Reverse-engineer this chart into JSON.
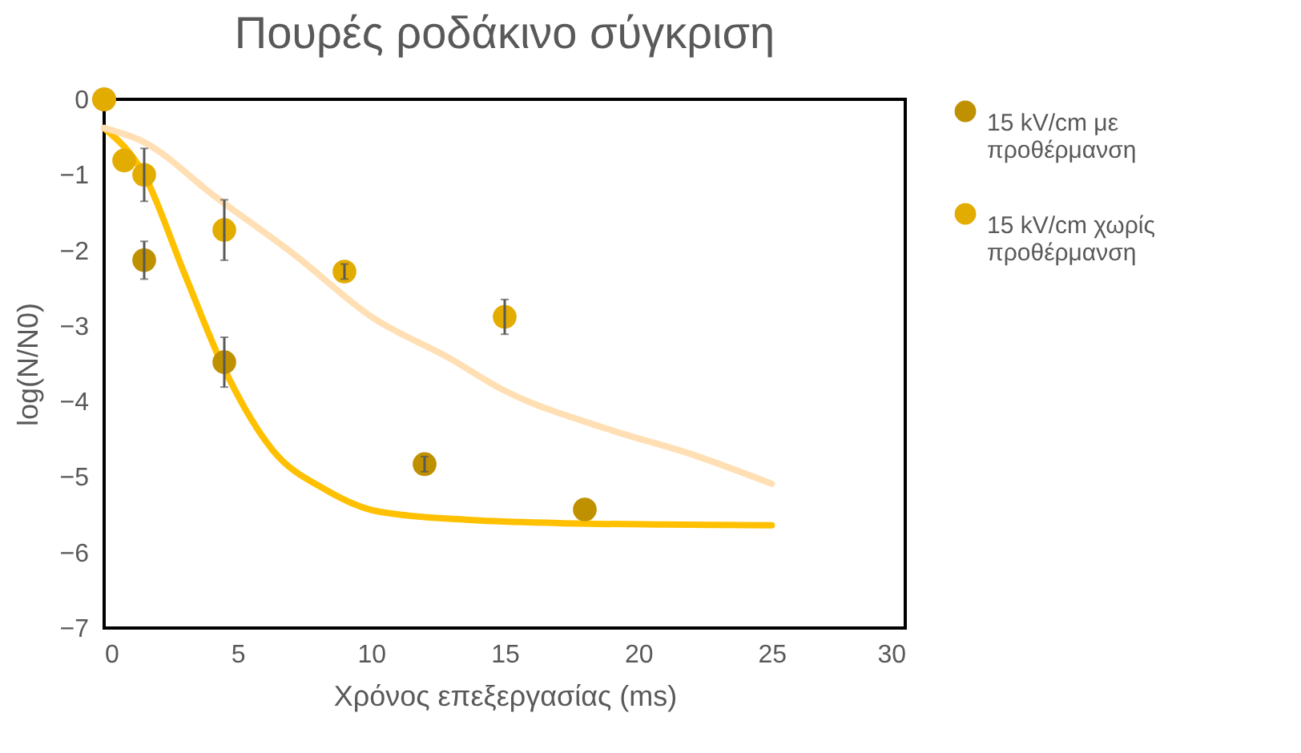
{
  "chart_data": {
    "type": "scatter",
    "title": "Πουρές ροδάκινο σύγκριση",
    "xlabel": "Χρόνος επεξεργασίας (ms)",
    "ylabel": "log(N/N0)",
    "xlim": [
      0,
      30
    ],
    "xticks": [
      0,
      5,
      10,
      15,
      20,
      25,
      30
    ],
    "ylim": [
      -7,
      0
    ],
    "yticks": [
      -7,
      -6,
      -5,
      -4,
      -3,
      -2,
      -1,
      0
    ],
    "grid": false,
    "legend": "right",
    "series": [
      {
        "name": "15 kV/cm με προθέρμανση",
        "marker": "circle",
        "color": "#bf9000",
        "x": [
          0,
          1.5,
          4.5,
          12,
          18
        ],
        "values": [
          0,
          -2.13,
          -3.48,
          -4.83,
          -5.43
        ],
        "errors": [
          null,
          0.25,
          0.33,
          0.1,
          null
        ]
      },
      {
        "name": "15 kV/cm χωρίς προθέρμανση",
        "marker": "circle",
        "color": "#e3ac00",
        "x": [
          0,
          0.75,
          1.5,
          4.5,
          9,
          15
        ],
        "values": [
          0,
          -0.81,
          -1.0,
          -1.73,
          -2.28,
          -2.88
        ],
        "errors": [
          null,
          null,
          0.35,
          0.4,
          0.1,
          0.23
        ]
      },
      {
        "type": "line",
        "color": "#ffc000",
        "x": [
          0,
          1.5,
          3,
          4.5,
          6.3,
          8.3,
          10.3,
          13.8,
          17,
          21,
          25
        ],
        "values": [
          -0.38,
          -1.0,
          -2.3,
          -3.57,
          -4.64,
          -5.17,
          -5.46,
          -5.57,
          -5.61,
          -5.63,
          -5.64
        ]
      },
      {
        "type": "line",
        "color": "#ffdfb3",
        "x": [
          0,
          1.4,
          4.2,
          7.1,
          10.1,
          12.9,
          14.9,
          18.9,
          22,
          25
        ],
        "values": [
          -0.38,
          -0.55,
          -1.3,
          -2.05,
          -2.9,
          -3.42,
          -3.84,
          -4.37,
          -4.7,
          -5.09
        ]
      }
    ]
  }
}
